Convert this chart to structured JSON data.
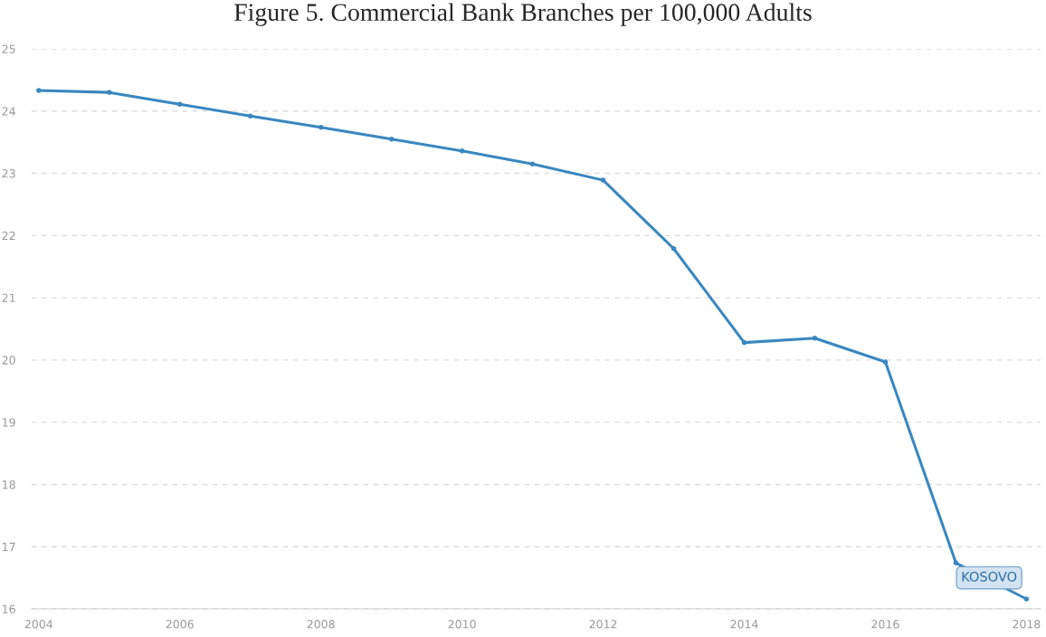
{
  "chart_data": {
    "type": "line",
    "title": "Figure 5. Commercial Bank Branches per 100,000 Adults",
    "x": [
      2004,
      2005,
      2006,
      2007,
      2008,
      2009,
      2010,
      2011,
      2012,
      2013,
      2014,
      2015,
      2016,
      2017,
      2018
    ],
    "series": [
      {
        "name": "KOSOVO",
        "color": "#3a87c0",
        "values": [
          24.33,
          24.3,
          24.11,
          23.92,
          23.74,
          23.55,
          23.36,
          23.15,
          22.89,
          21.79,
          20.28,
          20.35,
          19.97,
          16.74,
          16.16
        ]
      }
    ],
    "xlim": [
      2003.9,
      2018.2
    ],
    "xticks": [
      2004,
      2006,
      2008,
      2010,
      2012,
      2014,
      2016,
      2018
    ],
    "ylim": [
      16,
      25
    ],
    "yticks": [
      16,
      17,
      18,
      19,
      20,
      21,
      22,
      23,
      24,
      25
    ],
    "grid": "y",
    "marker": "circle",
    "line_style": "solid",
    "legend": false
  }
}
